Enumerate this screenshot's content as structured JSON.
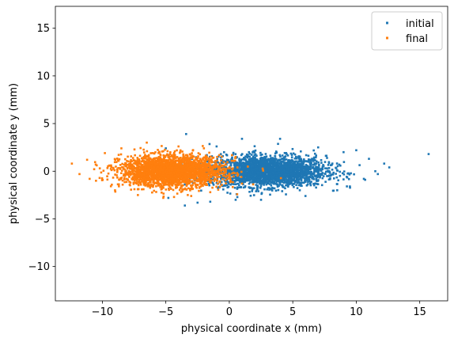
{
  "chart_data": {
    "type": "scatter",
    "title": "",
    "xlabel": "physical coordinate x (mm)",
    "ylabel": "physical coordinate y (mm)",
    "xlim": [
      -13.7,
      17.2
    ],
    "ylim": [
      -13.6,
      17.3
    ],
    "xticks": [
      -10,
      -5,
      0,
      5,
      10,
      15
    ],
    "yticks": [
      -10,
      -5,
      0,
      5,
      10,
      15
    ],
    "grid": false,
    "legend_position": "top-right",
    "series": [
      {
        "name": "initial",
        "color": "#1f77b4",
        "cloud": {
          "center_x": 3.0,
          "center_y": 0.0,
          "spread_x": 2.3,
          "spread_y": 0.8,
          "count": 2600
        },
        "points": [
          [
            15.7,
            1.8
          ],
          [
            12.6,
            0.4
          ],
          [
            12.2,
            0.8
          ],
          [
            11.7,
            -0.3
          ],
          [
            11.0,
            1.3
          ],
          [
            10.0,
            2.2
          ],
          [
            -3.4,
            3.9
          ],
          [
            -3.5,
            -3.6
          ],
          [
            -2.5,
            -3.3
          ],
          [
            6.0,
            -2.6
          ],
          [
            -1.0,
            2.6
          ],
          [
            7.0,
            2.5
          ],
          [
            1.0,
            3.4
          ],
          [
            4.0,
            3.4
          ],
          [
            9.5,
            -1.6
          ],
          [
            8.5,
            -2.0
          ],
          [
            10.7,
            -0.9
          ],
          [
            -5.0,
            2.4
          ],
          [
            -4.8,
            -2.8
          ],
          [
            2.5,
            -3.0
          ],
          [
            0.5,
            -3.0
          ],
          [
            -1.5,
            -3.2
          ],
          [
            11.5,
            0.0
          ],
          [
            9.0,
            2.0
          ]
        ]
      },
      {
        "name": "final",
        "color": "#ff7f0e",
        "cloud": {
          "center_x": -4.5,
          "center_y": 0.0,
          "spread_x": 2.0,
          "spread_y": 0.8,
          "count": 2600
        },
        "points": [
          [
            -12.4,
            0.8
          ],
          [
            -11.8,
            -0.3
          ],
          [
            -11.2,
            1.2
          ],
          [
            -10.5,
            -1.0
          ],
          [
            -9.8,
            1.9
          ],
          [
            -9.0,
            -2.0
          ],
          [
            -8.5,
            2.4
          ],
          [
            -6.5,
            3.0
          ],
          [
            -5.2,
            -2.8
          ],
          [
            -4.0,
            2.6
          ],
          [
            -2.0,
            2.4
          ],
          [
            -1.5,
            -2.2
          ],
          [
            0.5,
            1.5
          ],
          [
            1.0,
            -1.3
          ],
          [
            -7.2,
            -2.5
          ],
          [
            -11.0,
            -0.8
          ],
          [
            -3.0,
            -2.6
          ],
          [
            -10.2,
            0.3
          ]
        ]
      }
    ]
  }
}
